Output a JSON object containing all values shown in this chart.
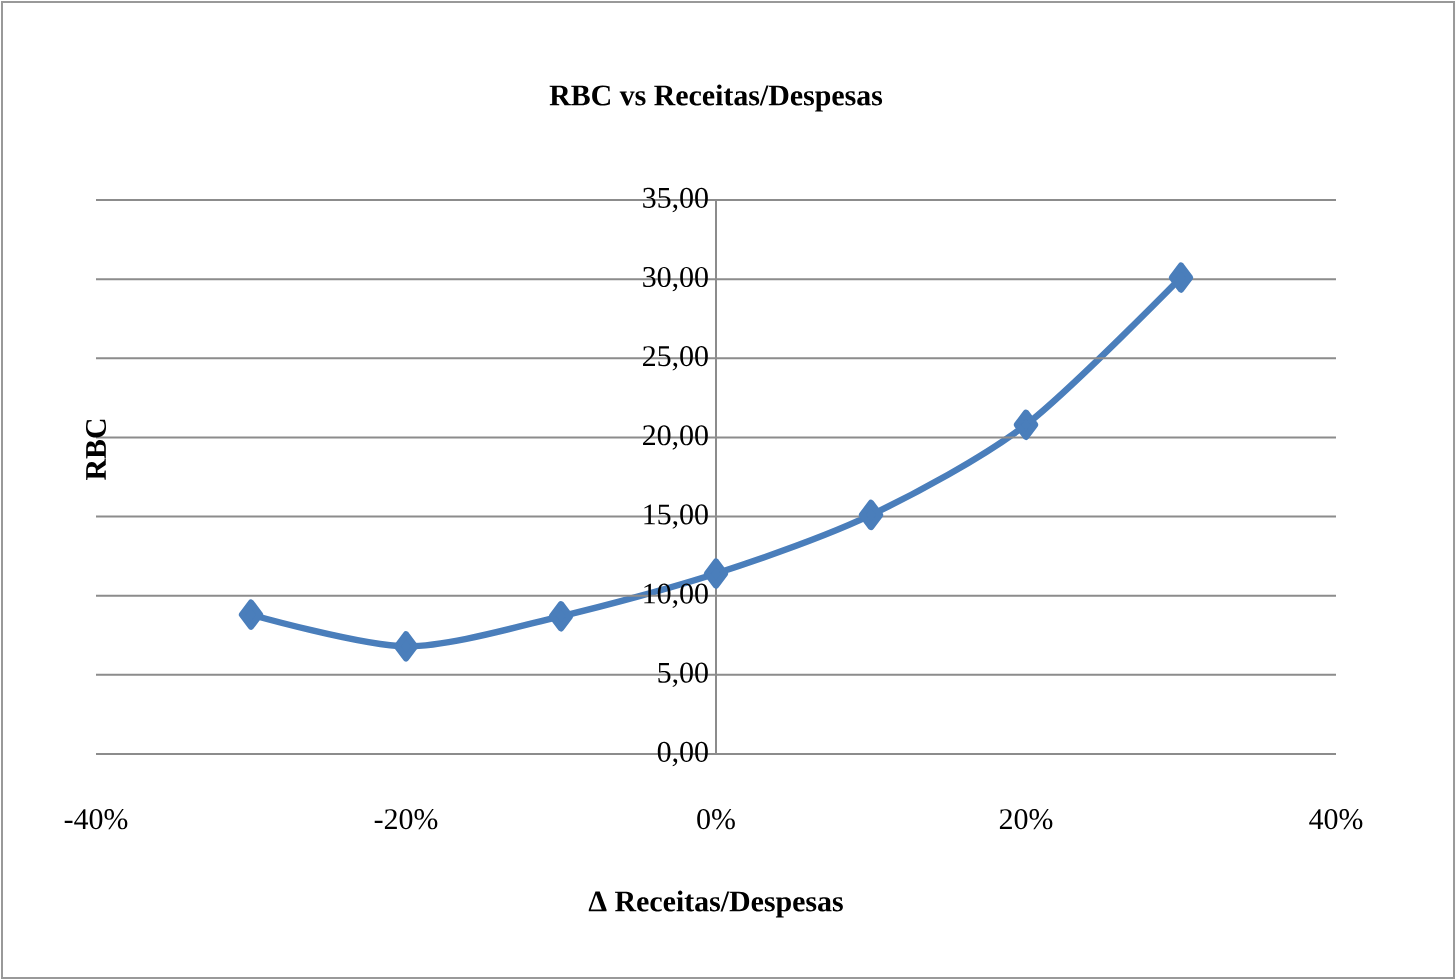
{
  "chart_data": {
    "type": "line",
    "title": "RBC vs Receitas/Despesas",
    "xlabel": "Δ Receitas/Despesas",
    "ylabel": "RBC",
    "x": [
      -30,
      -20,
      -10,
      0,
      10,
      20,
      30
    ],
    "series": [
      {
        "color": "#4a7ebb",
        "values": [
          8.8,
          6.8,
          8.7,
          11.4,
          15.1,
          20.8,
          30.1
        ]
      }
    ],
    "xlim": [
      -40,
      40
    ],
    "xticks": [
      {
        "value": -40,
        "label": "-40%"
      },
      {
        "value": -20,
        "label": "-20%"
      },
      {
        "value": 0,
        "label": "0%"
      },
      {
        "value": 20,
        "label": "20%"
      },
      {
        "value": 40,
        "label": "40%"
      }
    ],
    "ylim": [
      0,
      35
    ],
    "yticks": [
      {
        "value": 0,
        "label": "0,00"
      },
      {
        "value": 5,
        "label": "5,00"
      },
      {
        "value": 10,
        "label": "10,00"
      },
      {
        "value": 15,
        "label": "15,00"
      },
      {
        "value": 20,
        "label": "20,00"
      },
      {
        "value": 25,
        "label": "25,00"
      },
      {
        "value": 30,
        "label": "30,00"
      },
      {
        "value": 35,
        "label": "35,00"
      }
    ],
    "grid": "y",
    "marker": "diamond",
    "line_style": "solid"
  }
}
